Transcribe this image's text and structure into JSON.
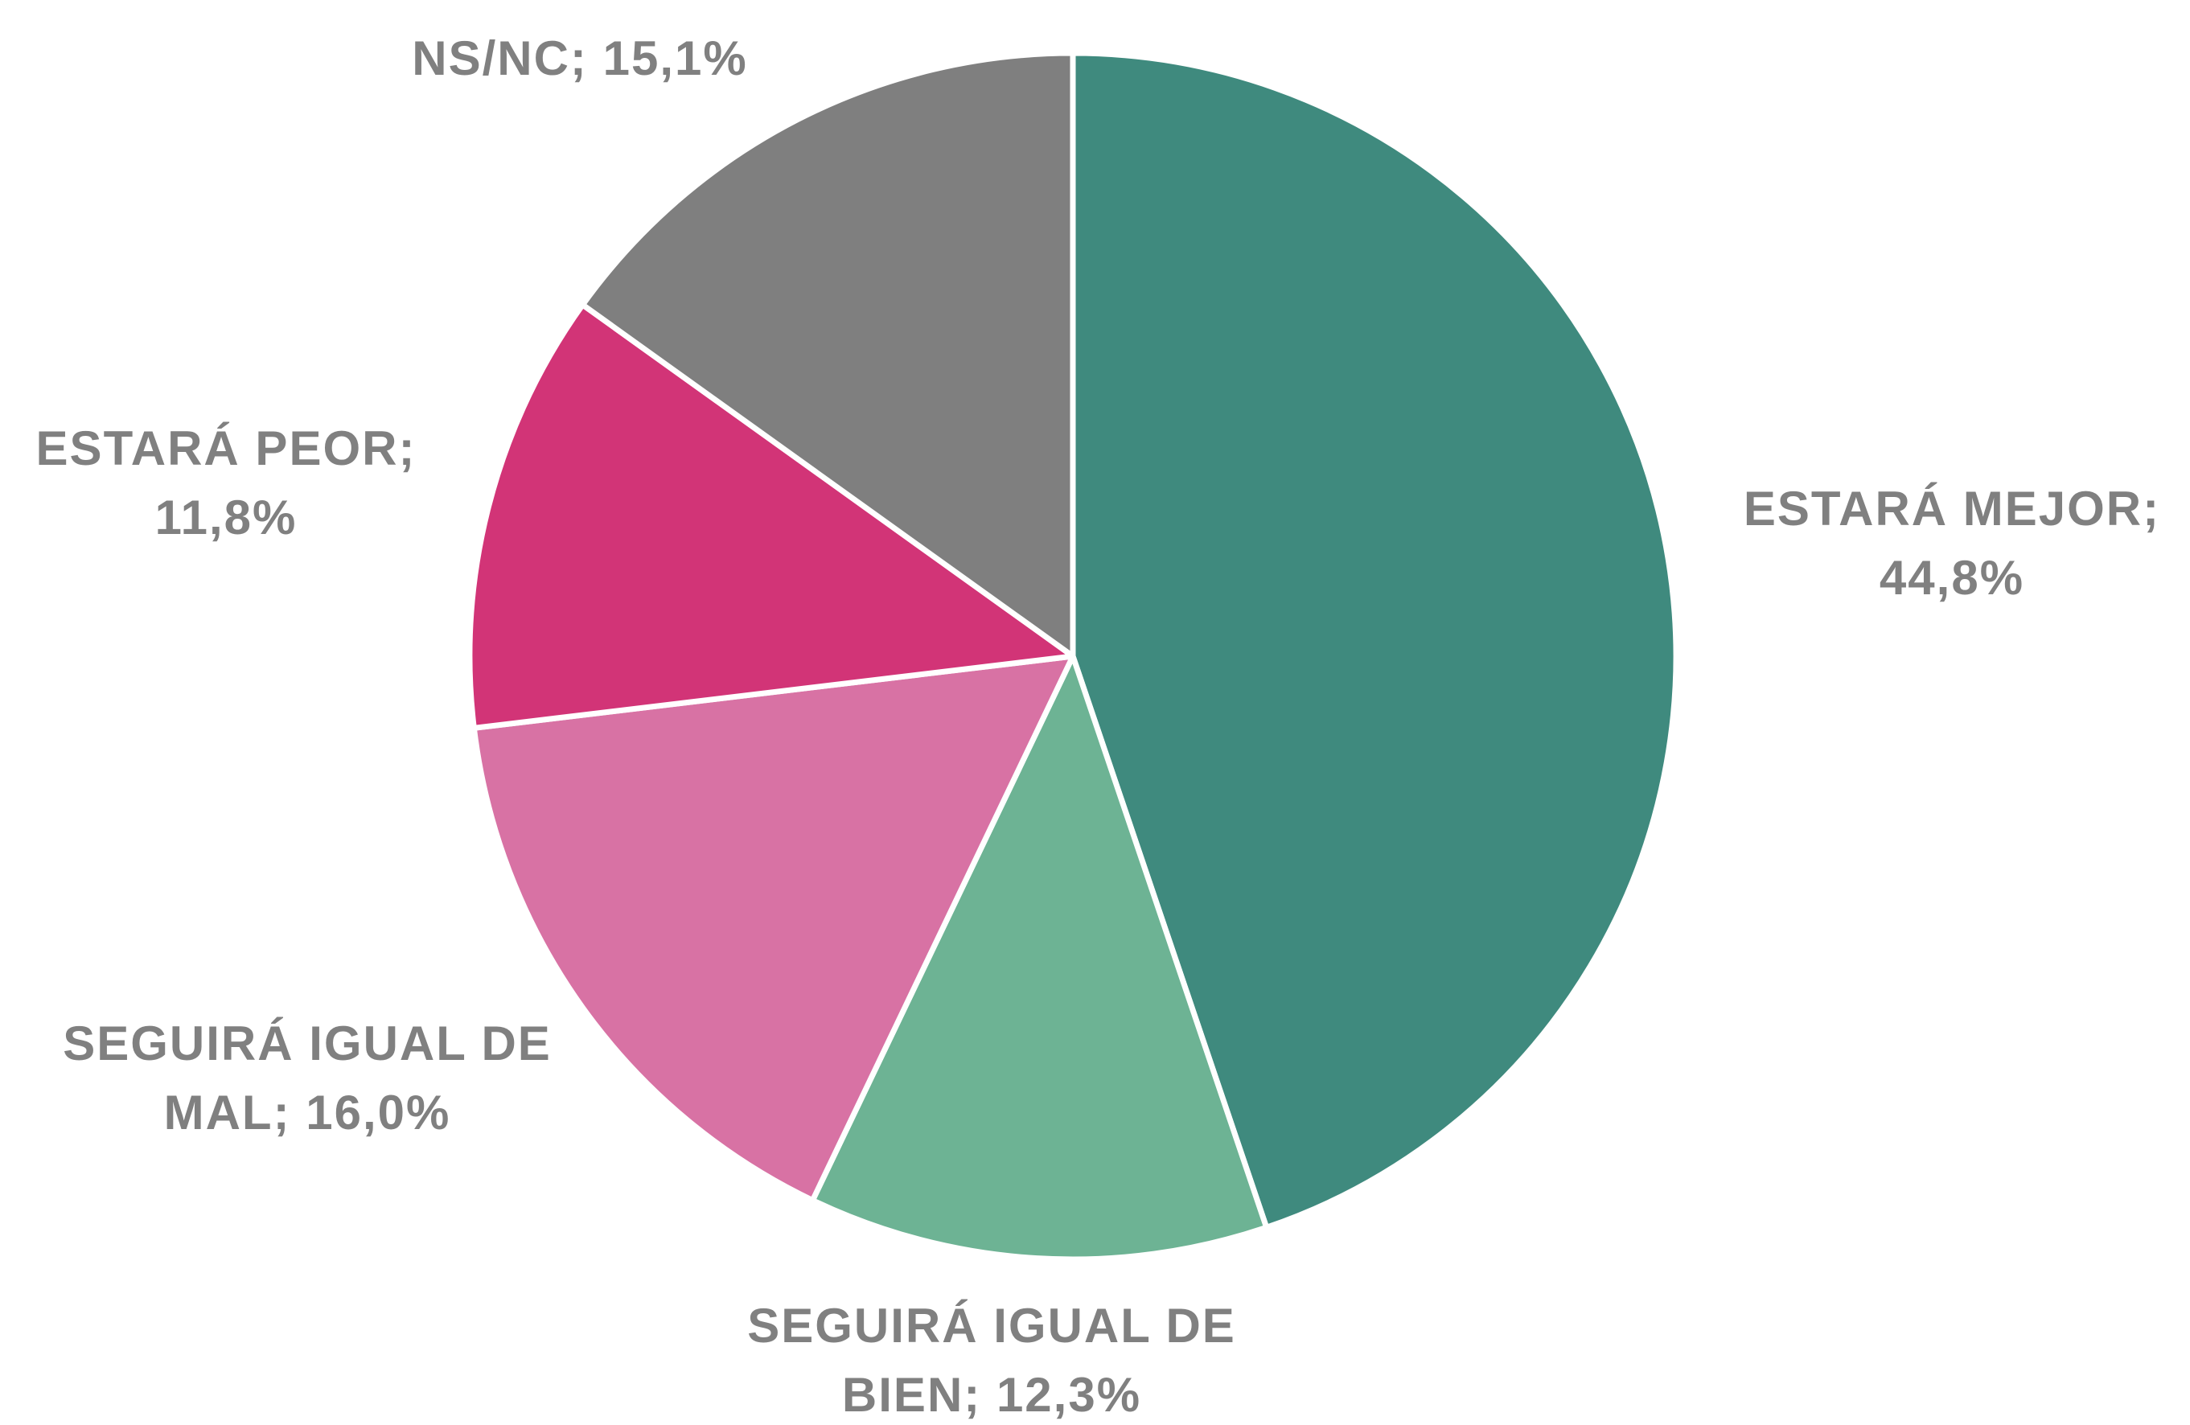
{
  "chart_data": {
    "type": "pie",
    "categories": [
      "ESTARÁ MEJOR;",
      "SEGUIRÁ IGUAL DE BIEN;",
      "SEGUIRÁ IGUAL DE MAL;",
      "ESTARÁ PEOR;",
      "NS/NC;"
    ],
    "values": [
      44.8,
      12.3,
      16.0,
      11.8,
      15.1
    ],
    "value_labels": [
      "44,8%",
      "12,3%",
      "16,0%",
      "11,8%",
      "15,1%"
    ],
    "colors": [
      "#3f8a7e",
      "#6db394",
      "#d872a4",
      "#d23477",
      "#7f7f7f"
    ]
  }
}
